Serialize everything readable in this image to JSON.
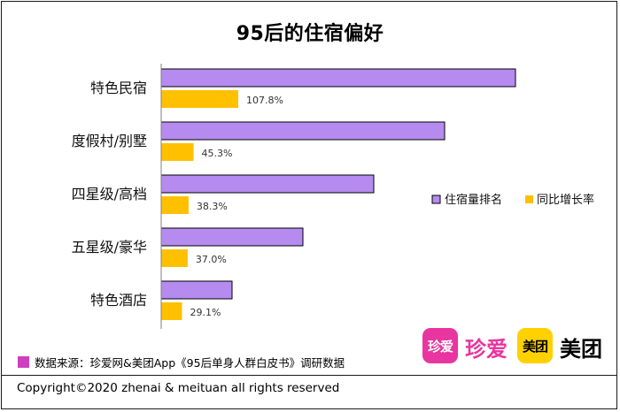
{
  "title": "95后的住宿偏好",
  "chart_data": {
    "type": "bar",
    "orientation": "horizontal",
    "categories": [
      "特色民宿",
      "度假村/别墅",
      "四星级/高档",
      "五星级/豪华",
      "特色酒店"
    ],
    "series": [
      {
        "name": "住宿量排名",
        "values": [
          100,
          80,
          60,
          40,
          20
        ],
        "color": "#b68bf0",
        "stroke": "#000000"
      },
      {
        "name": "同比增长率",
        "values": [
          107.8,
          45.3,
          38.3,
          37.0,
          29.1
        ],
        "labels": [
          "107.8%",
          "45.3%",
          "38.3%",
          "37.0%",
          "29.1%"
        ],
        "color": "#ffc000"
      }
    ],
    "legend_position": "right",
    "grid": false
  },
  "source": {
    "text": "数据来源：珍爱网&美团App《95后单身人群白皮书》调研数据",
    "swatch_color": "#cc3fbf"
  },
  "logos": {
    "zhenai_badge": "珍爱",
    "zhenai_text": "珍爱",
    "zhenai_color": "#e8359f",
    "meituan_badge": "美团",
    "meituan_text": "美团",
    "meituan_color": "#ffd100"
  },
  "copyright": "Copyright©2020 zhenai & meituan all rights reserved"
}
